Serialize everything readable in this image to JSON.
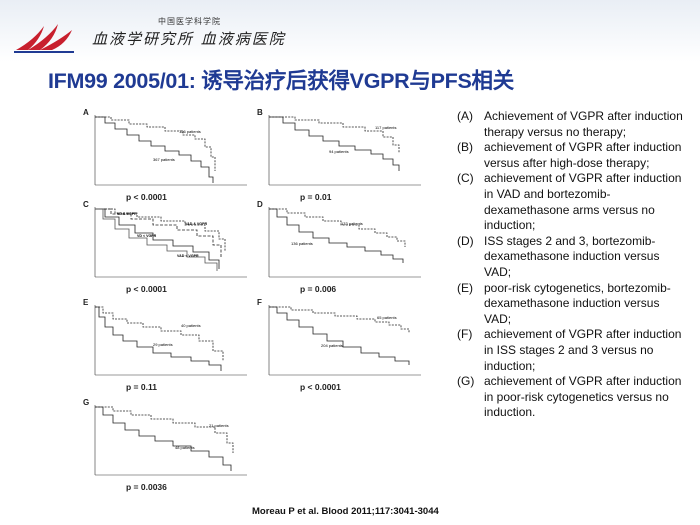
{
  "header": {
    "institution_name": "中国医学科学院",
    "institution_motto": "血液学研究所 血液病医院",
    "title": "IFM99 2005/01: 诱导治疗后获得VGPR与PFS相关"
  },
  "figure": {
    "panels": [
      {
        "id": "A",
        "p_value": "p < 0.0001",
        "labels": [
          "126 patients",
          "367 patients"
        ]
      },
      {
        "id": "B",
        "p_value": "p = 0.01",
        "labels": [
          "117 patients",
          "94 patients"
        ]
      },
      {
        "id": "C",
        "p_value": "p < 0.0001",
        "labels": [
          "VD & VGPR",
          "VAD & VGPR",
          "VD < VGPR",
          "VAD < VGPR"
        ]
      },
      {
        "id": "D",
        "p_value": "p = 0.006",
        "labels": [
          "133 patients",
          "136 patients"
        ]
      },
      {
        "id": "E",
        "p_value": "p = 0.11",
        "labels": [
          "40 patients",
          "29 patients"
        ]
      },
      {
        "id": "F",
        "p_value": "p < 0.0001",
        "labels": [
          "65 patients",
          "204 patients"
        ]
      },
      {
        "id": "G",
        "p_value": "p = 0.0036",
        "labels": [
          "21 patients",
          "48 patients"
        ]
      }
    ]
  },
  "legend": [
    {
      "tag": "(A)",
      "text": "Achievement of VGPR after induction therapy versus no therapy;"
    },
    {
      "tag": "(B)",
      "text": " achievement of VGPR after induction versus after high-dose therapy;"
    },
    {
      "tag": "(C)",
      "text": " achievement of VGPR after induction in VAD and bortezomib-dexamethasone arms versus no induction;"
    },
    {
      "tag": "(D)",
      "text": " ISS stages 2 and 3, bortezomib-dexamethasone induction versus VAD;"
    },
    {
      "tag": "(E)",
      "text": " poor-risk cytogenetics, bortezomib-dexamethasone induction versus VAD;"
    },
    {
      "tag": "(F)",
      "text": " achievement of VGPR after induction in ISS stages 2 and 3 versus no induction;"
    },
    {
      "tag": "(G)",
      "text": " achievement of VGPR after induction in poor-risk cytogenetics versus no induction."
    }
  ],
  "citation": "Moreau P et al. Blood 2011;117:3041-3044",
  "colors": {
    "title": "#1f3a93",
    "logo": "#c8202e"
  }
}
